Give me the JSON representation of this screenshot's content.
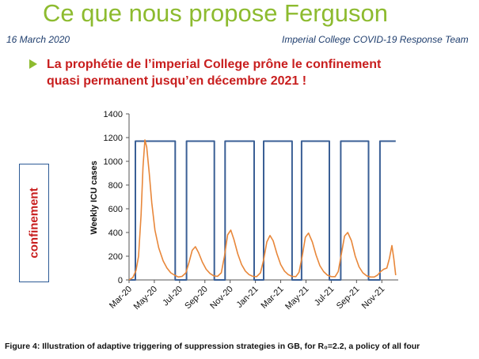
{
  "header": {
    "title": "Ce que nous propose Ferguson",
    "date": "16 March 2020",
    "team": "Imperial College COVID-19 Response Team"
  },
  "headline": {
    "line1": "La prophétie de l’imperial College prône le confinement",
    "line2": "quasi permanent jusqu’en décembre 2021 !"
  },
  "side_label": "confinement",
  "caption": "Figure 4: Illustration of adaptive triggering of suppression strategies in GB, for R₀=2.2, a policy of all four",
  "colors": {
    "title": "#8dbb2f",
    "headline": "#c81e1e",
    "policy_line": "#3a5f95",
    "icu_line": "#e8873a",
    "axis": "#555555"
  },
  "chart_data": {
    "type": "line",
    "ylabel": "Weekly ICU cases",
    "ylim": [
      0,
      1400
    ],
    "yticks": [
      0,
      200,
      400,
      600,
      800,
      1000,
      1200,
      1400
    ],
    "xlim": [
      0,
      21.3
    ],
    "xticks": [
      {
        "x": 0,
        "label": "Mar-20"
      },
      {
        "x": 2,
        "label": "May-20"
      },
      {
        "x": 4,
        "label": "Jul-20"
      },
      {
        "x": 6,
        "label": "Sep-20"
      },
      {
        "x": 8,
        "label": "Nov-20"
      },
      {
        "x": 10,
        "label": "Jan-21"
      },
      {
        "x": 12,
        "label": "Mar-21"
      },
      {
        "x": 14,
        "label": "May-21"
      },
      {
        "x": 16,
        "label": "Jul-21"
      },
      {
        "x": 18,
        "label": "Sep-21"
      },
      {
        "x": 20,
        "label": "Nov-21"
      }
    ],
    "series": [
      {
        "kind": "policy",
        "x": [
          0,
          0.5,
          0.5,
          3.65,
          3.65,
          4.55,
          4.55,
          6.75,
          6.75,
          7.6,
          7.6,
          9.9,
          9.9,
          10.65,
          10.65,
          12.9,
          12.9,
          13.65,
          13.65,
          15.85,
          15.85,
          16.75,
          16.75,
          18.95,
          18.95,
          19.85,
          19.85,
          21.1
        ],
        "y": [
          0,
          0,
          1170,
          1170,
          0,
          0,
          1170,
          1170,
          0,
          0,
          1170,
          1170,
          0,
          0,
          1170,
          1170,
          0,
          0,
          1170,
          1170,
          0,
          0,
          1170,
          1170,
          0,
          0,
          1170,
          1170
        ]
      },
      {
        "kind": "icu",
        "x": [
          0,
          0.3,
          0.55,
          0.75,
          0.95,
          1.1,
          1.25,
          1.4,
          1.6,
          1.8,
          2.05,
          2.35,
          2.7,
          3.0,
          3.3,
          3.6,
          3.9,
          4.2,
          4.5,
          4.75,
          5.0,
          5.25,
          5.5,
          5.8,
          6.1,
          6.4,
          6.7,
          7.0,
          7.3,
          7.55,
          7.8,
          8.05,
          8.3,
          8.6,
          8.9,
          9.2,
          9.5,
          9.8,
          10.1,
          10.4,
          10.65,
          10.9,
          11.15,
          11.4,
          11.7,
          12.0,
          12.3,
          12.6,
          12.9,
          13.2,
          13.45,
          13.7,
          13.95,
          14.2,
          14.5,
          14.8,
          15.1,
          15.4,
          15.7,
          16.0,
          16.3,
          16.55,
          16.8,
          17.05,
          17.3,
          17.6,
          17.9,
          18.2,
          18.5,
          18.8,
          19.1,
          19.4,
          19.65,
          19.9,
          20.15,
          20.4,
          20.6,
          20.8,
          20.95,
          21.1
        ],
        "y": [
          0,
          20,
          80,
          200,
          550,
          950,
          1180,
          1120,
          900,
          650,
          420,
          270,
          160,
          100,
          60,
          40,
          25,
          30,
          60,
          150,
          250,
          280,
          230,
          150,
          90,
          55,
          35,
          30,
          60,
          200,
          380,
          420,
          340,
          220,
          130,
          75,
          45,
          30,
          28,
          60,
          170,
          320,
          375,
          330,
          220,
          130,
          75,
          45,
          30,
          28,
          65,
          200,
          360,
          395,
          320,
          210,
          120,
          70,
          40,
          28,
          27,
          70,
          220,
          370,
          400,
          330,
          200,
          110,
          60,
          35,
          25,
          25,
          40,
          70,
          90,
          100,
          180,
          290,
          180,
          40
        ]
      }
    ]
  }
}
